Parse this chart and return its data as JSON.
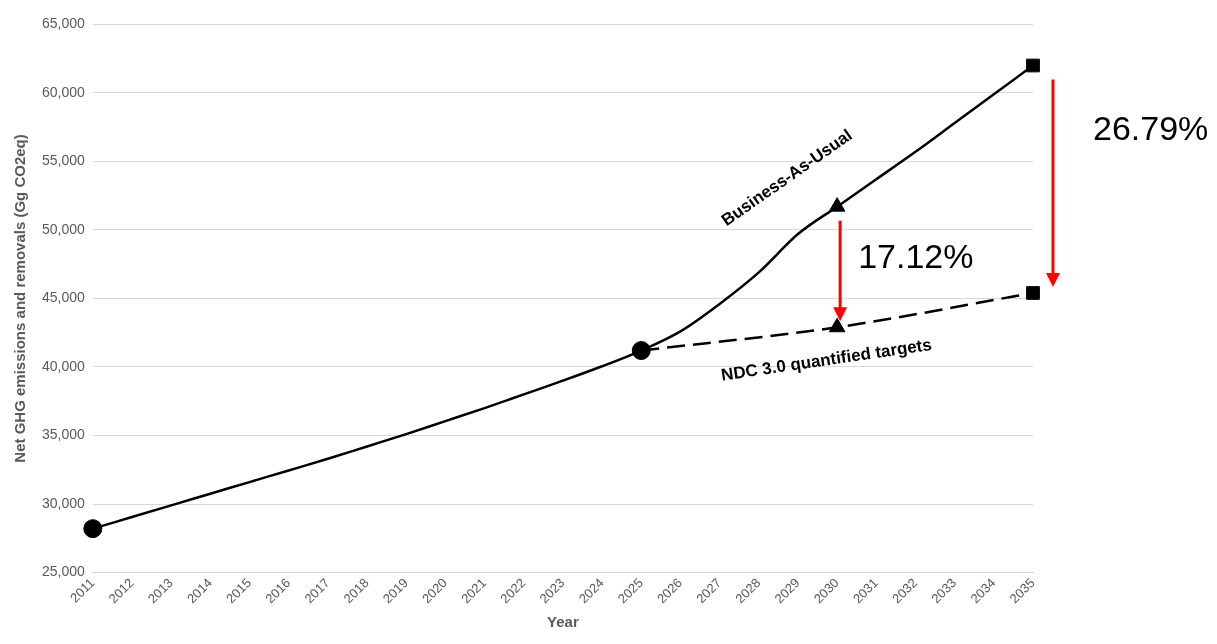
{
  "chart_data": {
    "type": "line",
    "xlabel": "Year",
    "ylabel": "Net GHG emissions and removals (Gg CO2eq)",
    "categories": [
      "2011",
      "2012",
      "2013",
      "2014",
      "2015",
      "2016",
      "2017",
      "2018",
      "2019",
      "2020",
      "2021",
      "2022",
      "2023",
      "2024",
      "2025",
      "2026",
      "2027",
      "2028",
      "2029",
      "2030",
      "2031",
      "2032",
      "2033",
      "2034",
      "2035"
    ],
    "ylim": [
      25000,
      65000
    ],
    "yticks": [
      {
        "value": 25000,
        "label": "25,000"
      },
      {
        "value": 30000,
        "label": "30,000"
      },
      {
        "value": 35000,
        "label": "35,000"
      },
      {
        "value": 40000,
        "label": "40,000"
      },
      {
        "value": 45000,
        "label": "45,000"
      },
      {
        "value": 50000,
        "label": "50,000"
      },
      {
        "value": 55000,
        "label": "55,000"
      },
      {
        "value": 60000,
        "label": "60,000"
      },
      {
        "value": 65000,
        "label": "65,000"
      }
    ],
    "grid": "y",
    "legend": false,
    "series": [
      {
        "name": "Business-As-Usual",
        "color": "#000000",
        "line_style": "solid",
        "marker": "none",
        "values": [
          28200,
          29050,
          29900,
          30750,
          31600,
          32450,
          33300,
          34200,
          35100,
          36050,
          37000,
          38000,
          39000,
          40050,
          41200,
          42600,
          44600,
          46900,
          49700,
          51700,
          53700,
          55700,
          57800,
          59900,
          62000
        ]
      },
      {
        "name": "NDC 3.0 quantified targets",
        "color": "#000000",
        "line_style": "dashed",
        "marker": "none",
        "values": [
          null,
          null,
          null,
          null,
          null,
          null,
          null,
          null,
          null,
          null,
          null,
          null,
          null,
          null,
          41200,
          null,
          null,
          null,
          null,
          42900,
          null,
          null,
          null,
          null,
          45400
        ]
      },
      {
        "type": "scatter",
        "color": "#000000",
        "marker": "circle",
        "values": [
          28200,
          null,
          null,
          null,
          null,
          null,
          null,
          null,
          null,
          null,
          null,
          null,
          null,
          null,
          41200,
          null,
          null,
          null,
          null,
          null,
          null,
          null,
          null,
          null,
          null
        ]
      },
      {
        "type": "scatter",
        "color": "#000000",
        "marker": "triangle",
        "values": [
          null,
          null,
          null,
          null,
          null,
          null,
          null,
          null,
          null,
          null,
          null,
          null,
          null,
          null,
          null,
          null,
          null,
          null,
          null,
          51700,
          null,
          null,
          null,
          null,
          null
        ]
      },
      {
        "type": "scatter",
        "color": "#000000",
        "marker": "triangle",
        "values": [
          null,
          null,
          null,
          null,
          null,
          null,
          null,
          null,
          null,
          null,
          null,
          null,
          null,
          null,
          null,
          null,
          null,
          null,
          null,
          42900,
          null,
          null,
          null,
          null,
          null
        ]
      },
      {
        "type": "scatter",
        "color": "#000000",
        "marker": "square",
        "values": [
          null,
          null,
          null,
          null,
          null,
          null,
          null,
          null,
          null,
          null,
          null,
          null,
          null,
          null,
          null,
          null,
          null,
          null,
          null,
          null,
          null,
          null,
          null,
          null,
          62000
        ]
      },
      {
        "type": "scatter",
        "color": "#000000",
        "marker": "square",
        "values": [
          null,
          null,
          null,
          null,
          null,
          null,
          null,
          null,
          null,
          null,
          null,
          null,
          null,
          null,
          null,
          null,
          null,
          null,
          null,
          null,
          null,
          null,
          null,
          null,
          45400
        ]
      }
    ],
    "annotations": [
      "17.12%",
      "26.79%"
    ]
  }
}
